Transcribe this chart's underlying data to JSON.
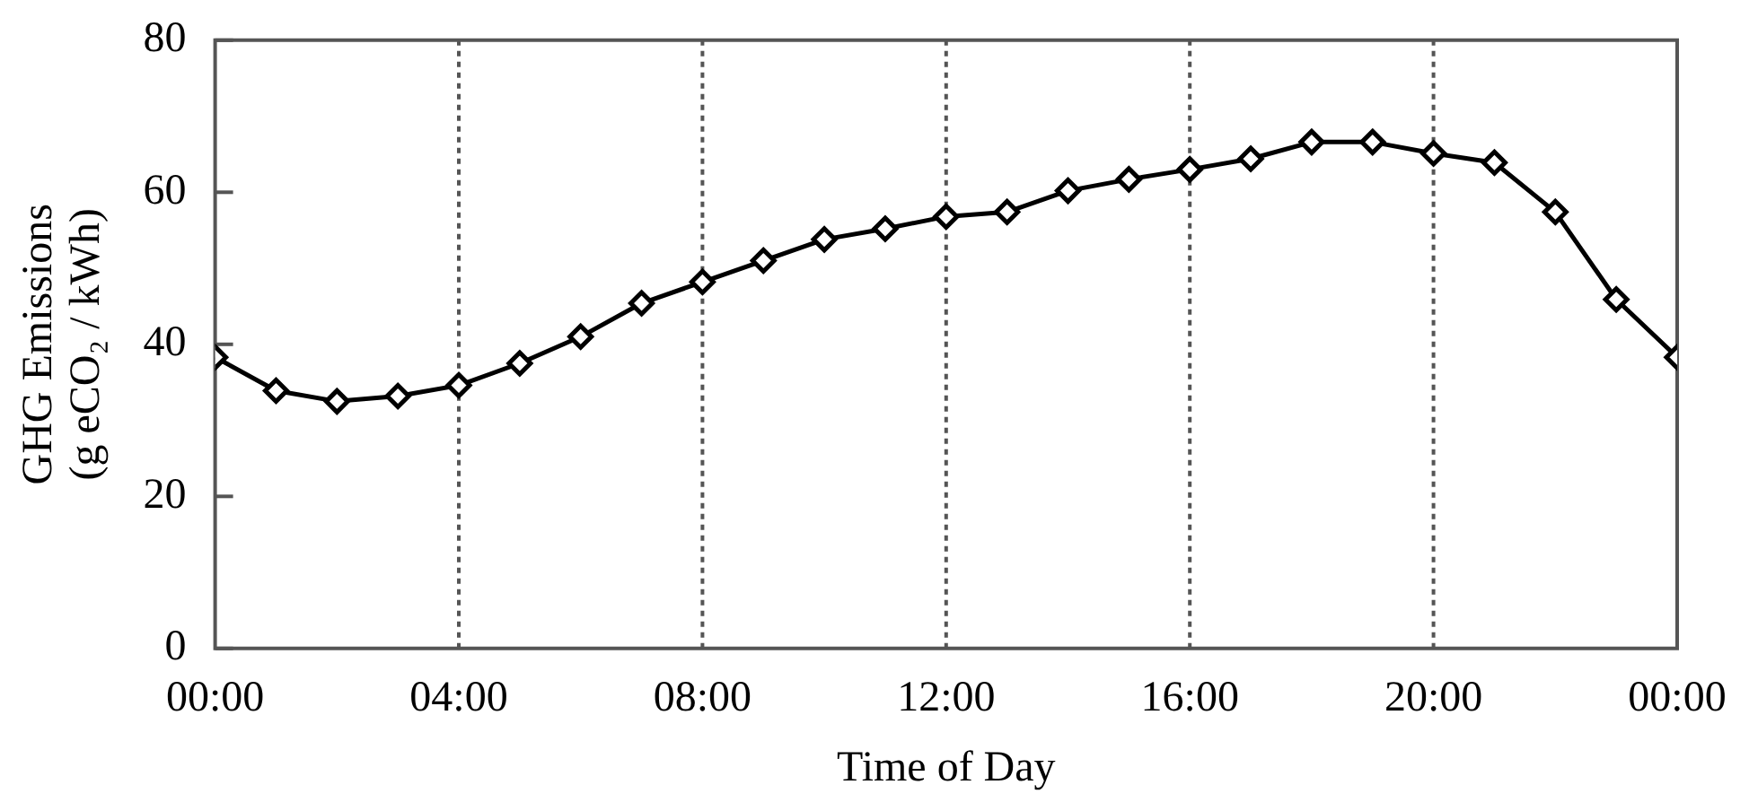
{
  "chart_data": {
    "type": "line",
    "xlabel": "Time of Day",
    "ylabel": "GHG Emissions\n(g eCO₂ / kWh)",
    "x": [
      0,
      1,
      2,
      3,
      4,
      5,
      6,
      7,
      8,
      9,
      10,
      11,
      12,
      13,
      14,
      15,
      16,
      17,
      18,
      19,
      20,
      21,
      22,
      23,
      24
    ],
    "series": [
      {
        "color": "#000000",
        "values": [
          38.3,
          33.9,
          32.5,
          33.2,
          34.6,
          37.5,
          41.0,
          45.4,
          48.2,
          51.0,
          53.8,
          55.2,
          56.8,
          57.4,
          60.2,
          61.7,
          63.0,
          64.4,
          66.6,
          66.6,
          65.1,
          63.9,
          57.4,
          45.9,
          38.3
        ]
      }
    ],
    "xlim": [
      0,
      24
    ],
    "xticks": [
      {
        "value": 0,
        "label": "00:00"
      },
      {
        "value": 4,
        "label": "04:00"
      },
      {
        "value": 8,
        "label": "08:00"
      },
      {
        "value": 12,
        "label": "12:00"
      },
      {
        "value": 16,
        "label": "16:00"
      },
      {
        "value": 20,
        "label": "20:00"
      },
      {
        "value": 24,
        "label": "00:00"
      }
    ],
    "ylim": [
      0,
      80
    ],
    "yticks": [
      0,
      20,
      40,
      60,
      80
    ],
    "grid": "x",
    "legend": false,
    "marker": "diamond",
    "line_style": "solid"
  }
}
